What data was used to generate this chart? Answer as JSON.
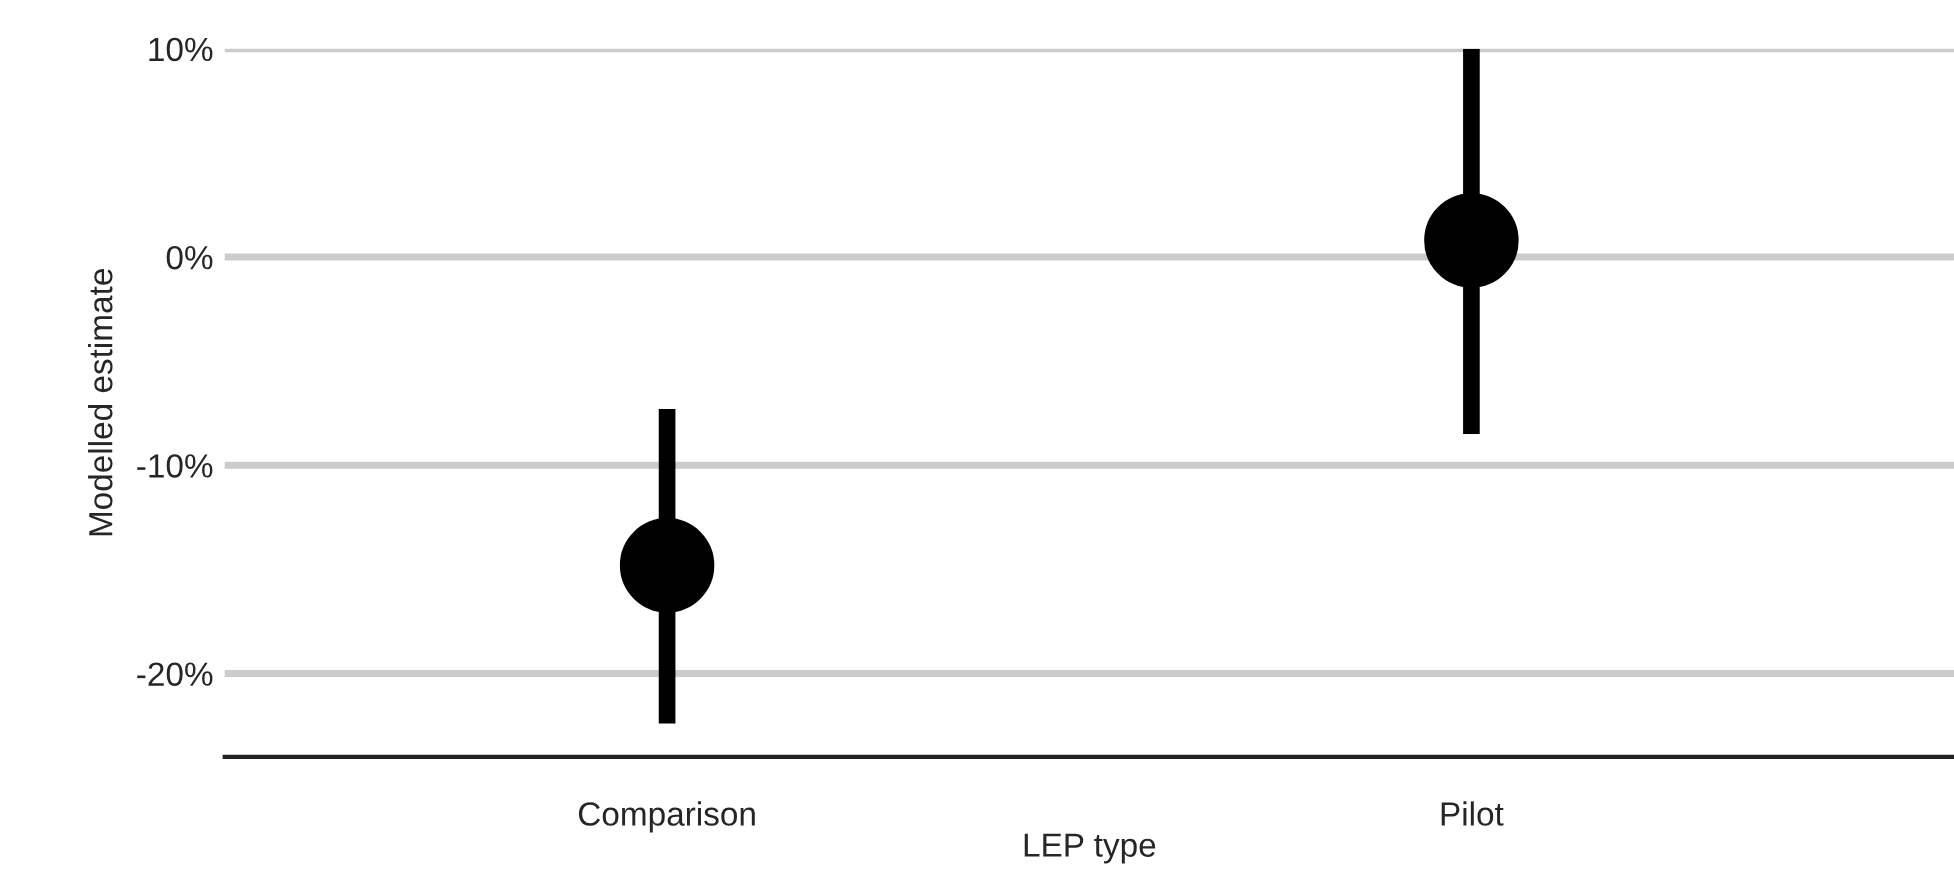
{
  "chart_data": {
    "type": "scatter",
    "xlabel": "LEP type",
    "ylabel": "Modelled estimate",
    "categories": [
      "Comparison",
      "Pilot"
    ],
    "values": [
      -14.8,
      0.8
    ],
    "errors": [
      [
        -22.4,
        -7.3
      ],
      [
        -8.5,
        10
      ]
    ],
    "color": "#000000",
    "marker": "circle",
    "ylim": [
      -24,
      10
    ],
    "yticks": [
      {
        "value": -20,
        "label": "-20%"
      },
      {
        "value": -10,
        "label": "-10%"
      },
      {
        "value": 0,
        "label": "0%"
      },
      {
        "value": 10,
        "label": "10%"
      }
    ],
    "grid": "y"
  }
}
